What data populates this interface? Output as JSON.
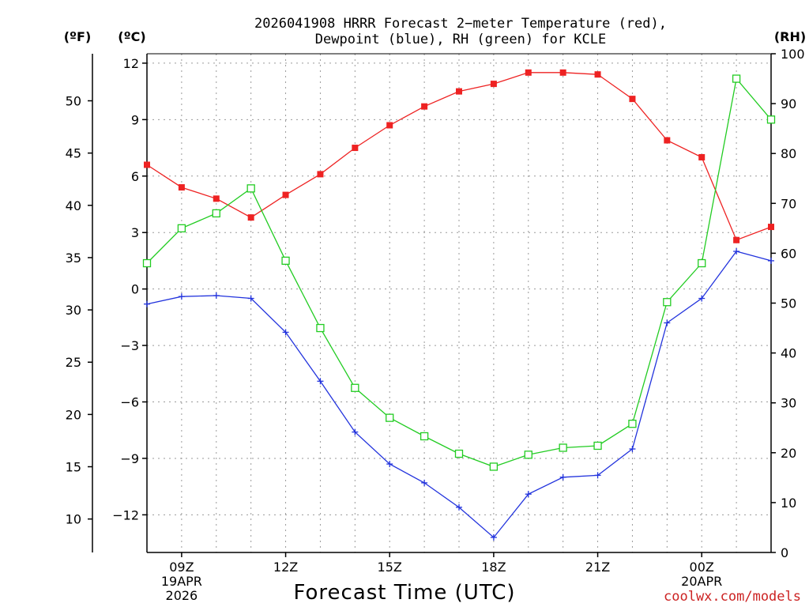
{
  "chart_data": {
    "type": "line",
    "title_lines": [
      "2026041908 HRRR Forecast 2−meter Temperature (red),",
      "Dewpoint (blue), RH (green) for KCLE"
    ],
    "xlabel": "Forecast Time (UTC)",
    "credit": "coolwx.com/models",
    "units": {
      "fahrenheit": "(ºF)",
      "celsius": "(ºC)",
      "rh": "(RH)"
    },
    "x_hours": [
      8,
      9,
      10,
      11,
      12,
      13,
      14,
      15,
      16,
      17,
      18,
      19,
      20,
      21,
      22,
      23,
      24,
      25,
      26
    ],
    "x_range": [
      8,
      26
    ],
    "x_ticks": [
      {
        "hour": 9,
        "lines": [
          "09Z",
          "19APR",
          "2026"
        ]
      },
      {
        "hour": 12,
        "lines": [
          "12Z"
        ]
      },
      {
        "hour": 15,
        "lines": [
          "15Z"
        ]
      },
      {
        "hour": 18,
        "lines": [
          "18Z"
        ]
      },
      {
        "hour": 21,
        "lines": [
          "21Z"
        ]
      },
      {
        "hour": 24,
        "lines": [
          "00Z",
          "20APR"
        ]
      }
    ],
    "celsius_axis": {
      "range": [
        -14,
        12.5
      ],
      "ticks": [
        12,
        9,
        6,
        3,
        0,
        -3,
        -6,
        -9,
        -12
      ],
      "tick_labels": [
        "12",
        "9",
        "6",
        "3",
        "0",
        "−3",
        "−6",
        "−9",
        "−12"
      ]
    },
    "fahrenheit_axis": {
      "ticks": [
        50,
        45,
        40,
        35,
        30,
        25,
        20,
        15,
        10
      ],
      "tick_labels": [
        "50",
        "45",
        "40",
        "35",
        "30",
        "25",
        "20",
        "15",
        "10"
      ]
    },
    "rh_axis": {
      "range": [
        0,
        100
      ],
      "ticks": [
        100,
        90,
        80,
        70,
        60,
        50,
        40,
        30,
        20,
        10,
        0
      ],
      "tick_labels": [
        "100",
        "90",
        "80",
        "70",
        "60",
        "50",
        "40",
        "30",
        "20",
        "10",
        "0"
      ]
    },
    "series": [
      {
        "name": "Temperature",
        "unit": "C",
        "color": "#ee2222",
        "marker": "filled-square",
        "values": [
          6.6,
          5.4,
          4.8,
          3.8,
          5.0,
          6.1,
          7.5,
          8.7,
          9.7,
          10.5,
          10.9,
          11.5,
          11.5,
          11.4,
          10.1,
          7.9,
          7.0,
          2.6,
          3.3
        ]
      },
      {
        "name": "Dewpoint",
        "unit": "C",
        "color": "#2233dd",
        "marker": "plus",
        "values": [
          -0.8,
          -0.4,
          -0.35,
          -0.5,
          -2.3,
          -4.9,
          -7.6,
          -9.3,
          -10.3,
          -11.6,
          -13.2,
          -10.9,
          -10.0,
          -9.9,
          -8.5,
          -1.8,
          -0.5,
          2.0,
          1.5
        ]
      },
      {
        "name": "RH",
        "unit": "%",
        "color": "#22cc22",
        "marker": "open-square",
        "values": [
          58,
          65,
          68,
          73,
          58.5,
          45,
          33,
          27,
          23.3,
          19.8,
          17.2,
          19.6,
          21,
          21.4,
          25.8,
          50.2,
          58,
          95,
          86.8
        ]
      }
    ]
  }
}
